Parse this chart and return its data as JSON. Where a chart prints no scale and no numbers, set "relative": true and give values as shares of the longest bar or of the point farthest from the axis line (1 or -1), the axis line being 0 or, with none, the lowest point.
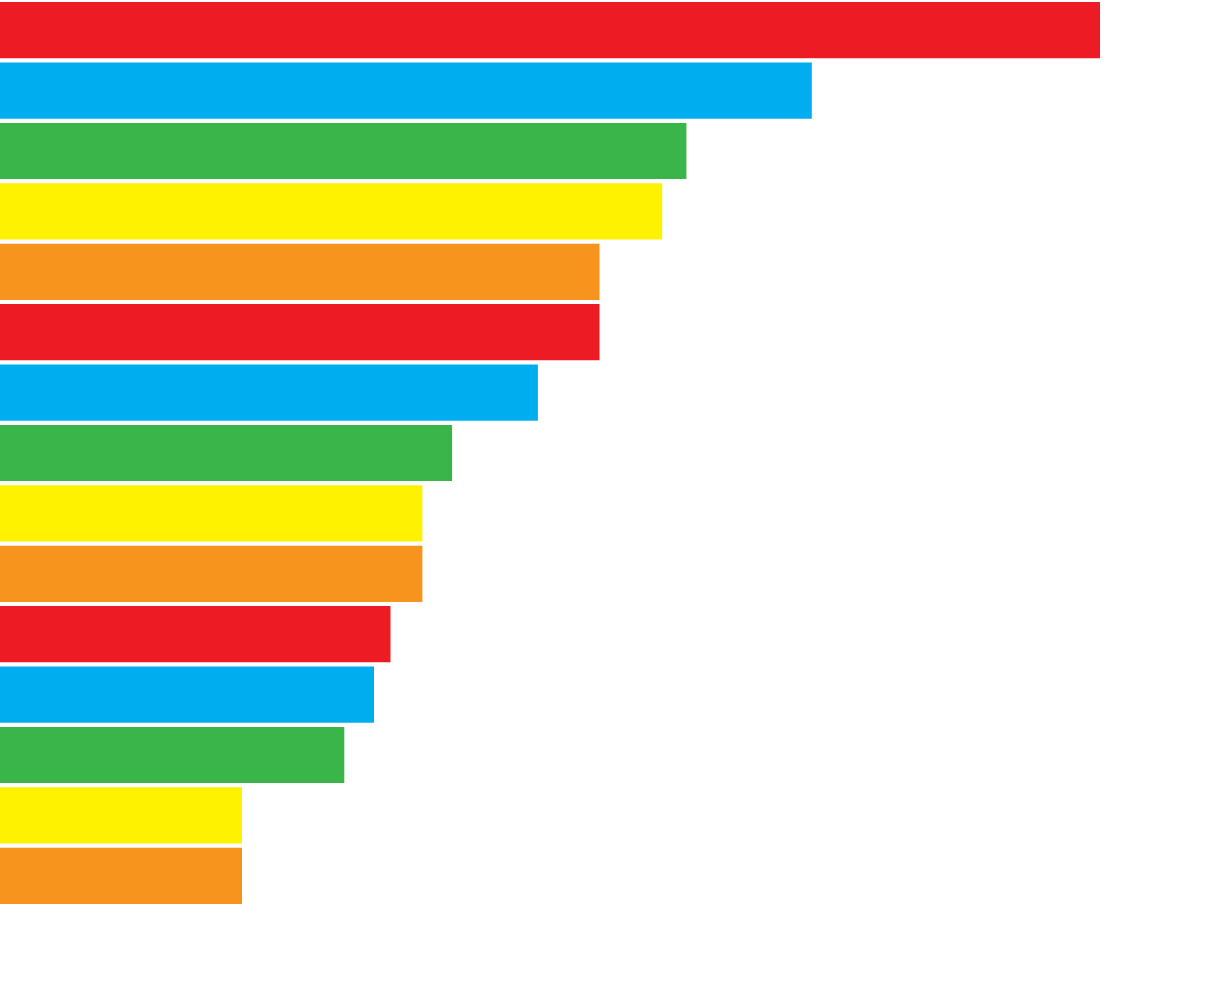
{
  "chart_data": {
    "type": "bar",
    "orientation": "horizontal",
    "relative": true,
    "categories": [
      null,
      null,
      null,
      null,
      null,
      null,
      null,
      null,
      null,
      null,
      null,
      null,
      null,
      null,
      null
    ],
    "values": [
      1,
      0.738,
      0.624,
      0.602,
      0.545,
      0.545,
      0.489,
      0.411,
      0.384,
      0.384,
      0.355,
      0.34,
      0.313,
      0.22,
      0.22
    ],
    "colors": [
      "#ed1c24",
      "#00aeef",
      "#39b54a",
      "#fff200",
      "#f7941d",
      "#ed1c24",
      "#00aeef",
      "#39b54a",
      "#fff200",
      "#f7941d",
      "#ed1c24",
      "#00aeef",
      "#39b54a",
      "#fff200",
      "#f7941d"
    ],
    "legend": false
  }
}
